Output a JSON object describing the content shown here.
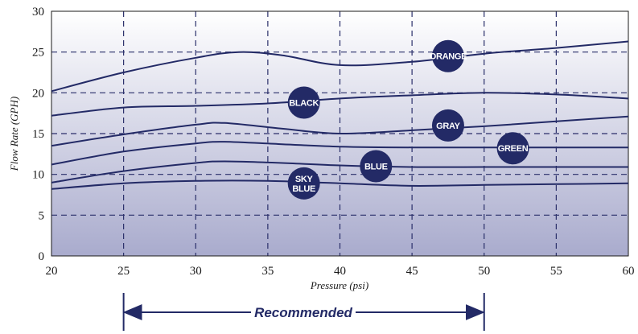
{
  "chart_data": {
    "type": "line",
    "xlabel": "Pressure (psi)",
    "ylabel": "Flow Rate (GPH)",
    "xlim": [
      20,
      60
    ],
    "ylim": [
      0,
      30
    ],
    "x_ticks": [
      20,
      25,
      30,
      35,
      40,
      45,
      50,
      55,
      60
    ],
    "y_ticks": [
      0,
      5,
      10,
      15,
      20,
      25,
      30
    ],
    "grid": true,
    "series": [
      {
        "name": "ORANGE",
        "color": "#232a66",
        "points": [
          [
            20,
            20.2
          ],
          [
            25,
            22.5
          ],
          [
            30,
            24.3
          ],
          [
            33,
            25.0
          ],
          [
            36,
            24.6
          ],
          [
            40,
            23.4
          ],
          [
            45,
            23.8
          ],
          [
            50,
            24.8
          ],
          [
            55,
            25.5
          ],
          [
            60,
            26.3
          ]
        ],
        "label_at": [
          47.5,
          24.5
        ]
      },
      {
        "name": "BLACK",
        "color": "#232a66",
        "points": [
          [
            20,
            17.2
          ],
          [
            25,
            18.2
          ],
          [
            30,
            18.4
          ],
          [
            35,
            18.7
          ],
          [
            40,
            19.3
          ],
          [
            45,
            19.7
          ],
          [
            50,
            20.0
          ],
          [
            55,
            19.8
          ],
          [
            60,
            19.3
          ]
        ],
        "label_at": [
          37.5,
          18.8
        ]
      },
      {
        "name": "GRAY",
        "color": "#232a66",
        "points": [
          [
            20,
            13.5
          ],
          [
            25,
            14.9
          ],
          [
            30,
            16.1
          ],
          [
            32,
            16.3
          ],
          [
            36,
            15.6
          ],
          [
            40,
            15.0
          ],
          [
            45,
            15.4
          ],
          [
            50,
            15.9
          ],
          [
            55,
            16.5
          ],
          [
            60,
            17.1
          ]
        ],
        "label_at": [
          47.5,
          16.0
        ]
      },
      {
        "name": "GREEN",
        "color": "#232a66",
        "points": [
          [
            20,
            11.2
          ],
          [
            25,
            12.8
          ],
          [
            30,
            13.8
          ],
          [
            32,
            14.0
          ],
          [
            36,
            13.7
          ],
          [
            40,
            13.4
          ],
          [
            45,
            13.3
          ],
          [
            50,
            13.3
          ],
          [
            55,
            13.3
          ],
          [
            60,
            13.3
          ]
        ],
        "label_at": [
          52.0,
          13.2
        ]
      },
      {
        "name": "BLUE",
        "color": "#232a66",
        "points": [
          [
            20,
            9.0
          ],
          [
            25,
            10.4
          ],
          [
            30,
            11.4
          ],
          [
            32,
            11.6
          ],
          [
            36,
            11.4
          ],
          [
            40,
            11.1
          ],
          [
            45,
            10.9
          ],
          [
            50,
            10.9
          ],
          [
            55,
            10.9
          ],
          [
            60,
            10.9
          ]
        ],
        "label_at": [
          42.5,
          11.0
        ]
      },
      {
        "name": "SKY\nBLUE",
        "color": "#232a66",
        "points": [
          [
            20,
            8.2
          ],
          [
            25,
            8.9
          ],
          [
            30,
            9.2
          ],
          [
            35,
            9.2
          ],
          [
            40,
            8.9
          ],
          [
            45,
            8.6
          ],
          [
            50,
            8.7
          ],
          [
            55,
            8.8
          ],
          [
            60,
            8.9
          ]
        ],
        "label_at": [
          37.5,
          8.9
        ]
      }
    ],
    "recommended": {
      "label": "Recommended",
      "from": 25,
      "to": 50
    }
  },
  "colors": {
    "line": "#232a66",
    "badge": "#232a66",
    "grid": "#2a2f6a",
    "plot_top": "#ffffff",
    "plot_bottom": "#a9abcd"
  }
}
